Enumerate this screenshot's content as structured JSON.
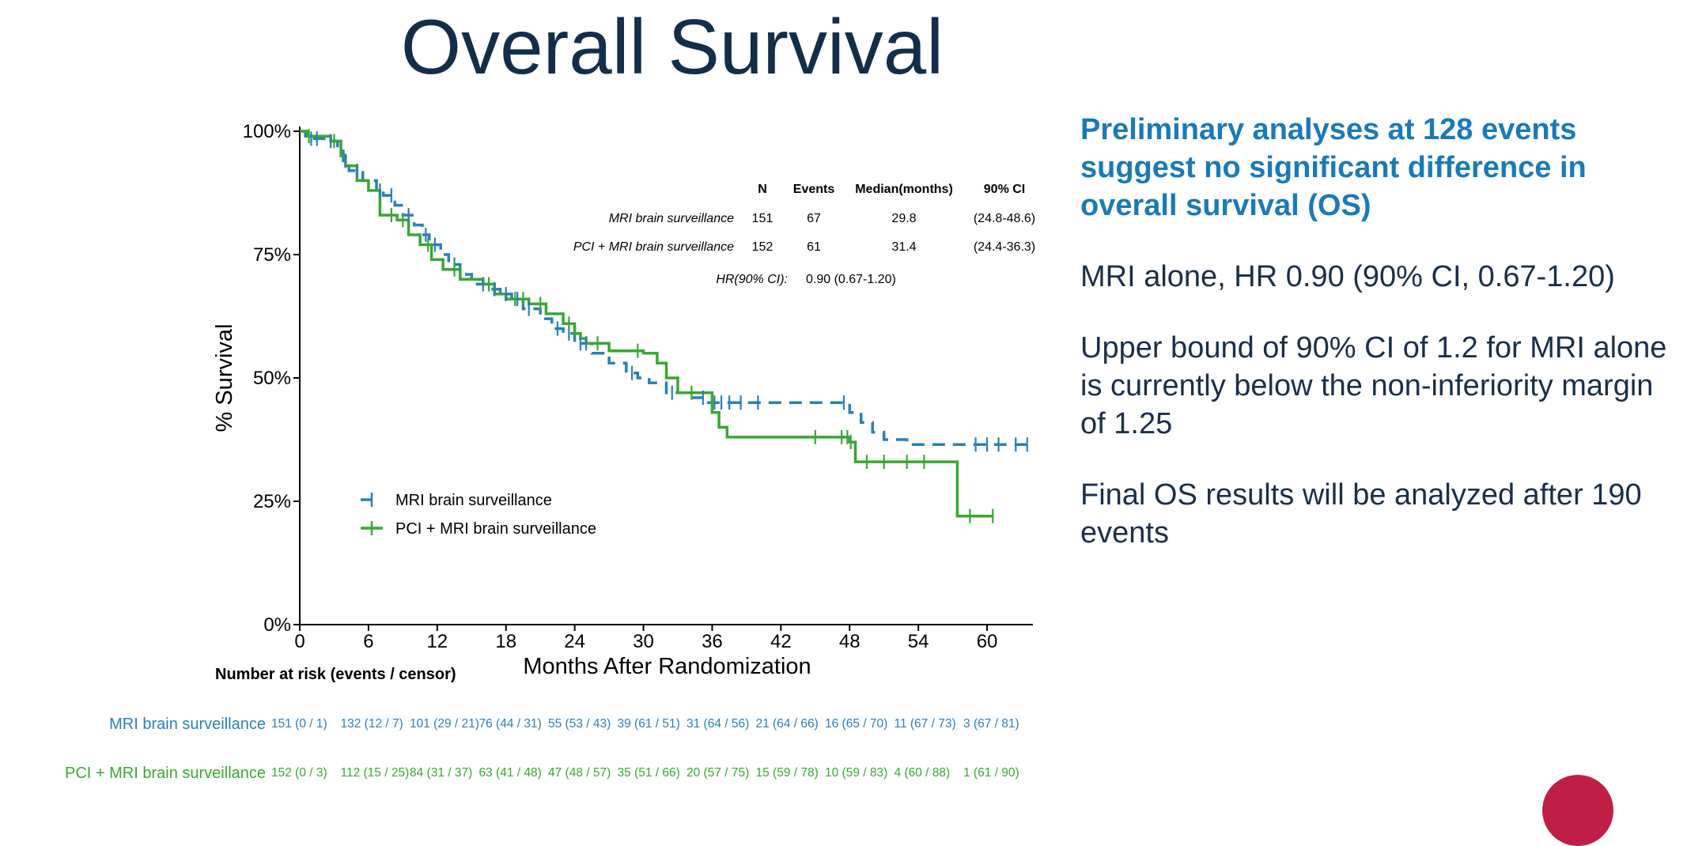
{
  "slide": {
    "title": "Overall Survival"
  },
  "right_panel": {
    "headline": "Preliminary analyses at 128 events suggest no significant difference in overall survival (OS)",
    "hr_text": "MRI alone, HR 0.90 (90% CI, 0.67-1.20)",
    "bound_text": "Upper bound of 90% CI of 1.2 for MRI alone is currently below the non-inferiority margin of 1.25",
    "final_text": "Final OS results will be analyzed after 190 events"
  },
  "colors": {
    "mri": "#2b7fb8",
    "pci": "#3aa635",
    "title": "#132e4b",
    "headline": "#1a7ab8",
    "logo": "#c01f45"
  },
  "chart_data": {
    "type": "line",
    "subtype": "kaplan-meier",
    "xlabel": "Months After Randomization",
    "ylabel": "% Survival",
    "xlim": [
      0,
      64
    ],
    "ylim": [
      0,
      100
    ],
    "xticks": [
      0,
      6,
      12,
      18,
      24,
      30,
      36,
      42,
      48,
      54,
      60
    ],
    "yticks": [
      0,
      25,
      50,
      75,
      100
    ],
    "ytick_labels": [
      "0%",
      "25%",
      "50%",
      "75%",
      "100%"
    ],
    "legend_position": "bottom-left",
    "series": [
      {
        "name": "MRI brain surveillance",
        "style": "dashed",
        "color": "#2b7fb8",
        "steps": [
          [
            0,
            100
          ],
          [
            0.5,
            99
          ],
          [
            1,
            98.5
          ],
          [
            2.5,
            98
          ],
          [
            3.3,
            96
          ],
          [
            3.8,
            94
          ],
          [
            4.3,
            92
          ],
          [
            5.5,
            90
          ],
          [
            6.7,
            88
          ],
          [
            7.3,
            87
          ],
          [
            8.3,
            85
          ],
          [
            9,
            83
          ],
          [
            10,
            81
          ],
          [
            10.7,
            79
          ],
          [
            11.3,
            77
          ],
          [
            12.3,
            75
          ],
          [
            13,
            73
          ],
          [
            14,
            71
          ],
          [
            15,
            69
          ],
          [
            16.5,
            68
          ],
          [
            17.5,
            67
          ],
          [
            18.5,
            66
          ],
          [
            19.5,
            64
          ],
          [
            21,
            62
          ],
          [
            22,
            60
          ],
          [
            23,
            59
          ],
          [
            24,
            57
          ],
          [
            25.5,
            55
          ],
          [
            27,
            53
          ],
          [
            28.5,
            51
          ],
          [
            29.5,
            50
          ],
          [
            30.5,
            49
          ],
          [
            32,
            47
          ],
          [
            34,
            46
          ],
          [
            35.5,
            45
          ],
          [
            48,
            43
          ],
          [
            49,
            41
          ],
          [
            50,
            39
          ],
          [
            51,
            37.5
          ],
          [
            53,
            36.5
          ],
          [
            64,
            36.5
          ]
        ],
        "censor_times": [
          1,
          1.5,
          2.7,
          4,
          5,
          7,
          8,
          9.5,
          11,
          11.8,
          13.5,
          16,
          17,
          18,
          19,
          20,
          22.5,
          23.5,
          24.5,
          25,
          29,
          32.5,
          35.2,
          36.2,
          36.8,
          37.5,
          38.5,
          40,
          47.5,
          59,
          60,
          61,
          62.5,
          63.5
        ]
      },
      {
        "name": "PCI + MRI brain surveillance",
        "style": "solid",
        "color": "#3aa635",
        "steps": [
          [
            0,
            100
          ],
          [
            0.7,
            99
          ],
          [
            2.7,
            98
          ],
          [
            3.6,
            95
          ],
          [
            4,
            93
          ],
          [
            5,
            90
          ],
          [
            6,
            88
          ],
          [
            7,
            83
          ],
          [
            8.5,
            82
          ],
          [
            9.5,
            79
          ],
          [
            10.5,
            77
          ],
          [
            11.5,
            74
          ],
          [
            12.5,
            72
          ],
          [
            14,
            70
          ],
          [
            16,
            69
          ],
          [
            17,
            67
          ],
          [
            18,
            66
          ],
          [
            20,
            65
          ],
          [
            21.5,
            63
          ],
          [
            23,
            61
          ],
          [
            24,
            59
          ],
          [
            24.5,
            58
          ],
          [
            25,
            57
          ],
          [
            27,
            55.5
          ],
          [
            30,
            55
          ],
          [
            31.2,
            53
          ],
          [
            32,
            50
          ],
          [
            33,
            47
          ],
          [
            36,
            43
          ],
          [
            36.6,
            40
          ],
          [
            37.3,
            38
          ],
          [
            48,
            37
          ],
          [
            48.5,
            33
          ],
          [
            57.3,
            33
          ],
          [
            57.4,
            22
          ],
          [
            60.5,
            22
          ]
        ],
        "censor_times": [
          0.8,
          3,
          8,
          9,
          11.2,
          13.5,
          16.5,
          18.8,
          19.5,
          21,
          23.5,
          26,
          29.5,
          34.2,
          45,
          47.3,
          47.8,
          48.1,
          49.5,
          51,
          53,
          54.5,
          58.5,
          60.5
        ]
      }
    ],
    "summary_table": {
      "headers": [
        "",
        "N",
        "Events",
        "Median(months)",
        "90% CI"
      ],
      "rows": [
        [
          "MRI brain surveillance",
          "151",
          "67",
          "29.8",
          "(24.8-48.6)"
        ],
        [
          "PCI + MRI brain surveillance",
          "152",
          "61",
          "31.4",
          "(24.4-36.3)"
        ]
      ],
      "hr_label": "HR(90% CI):",
      "hr_value": "0.90 (0.67-1.20)"
    },
    "risk_table": {
      "title": "Number at risk (events / censor)",
      "times": [
        0,
        6,
        12,
        18,
        24,
        30,
        36,
        42,
        48,
        54,
        60
      ],
      "rows": [
        {
          "label": "MRI brain surveillance",
          "values": [
            "151 (0 / 1)",
            "132 (12 / 7)",
            "101 (29 / 21)",
            "76 (44 / 31)",
            "55 (53 / 43)",
            "39 (61 / 51)",
            "31 (64 / 56)",
            "21 (64 / 66)",
            "16 (65 / 70)",
            "11 (67 / 73)",
            "3 (67 / 81)"
          ]
        },
        {
          "label": "PCI + MRI brain surveillance",
          "values": [
            "152 (0 / 3)",
            "112 (15 / 25)",
            "84 (31 / 37)",
            "63 (41 / 48)",
            "47 (48 / 57)",
            "35 (51 / 66)",
            "20 (57 / 75)",
            "15 (59 / 78)",
            "10 (59 / 83)",
            "4 (60 / 88)",
            "1 (61 / 90)"
          ]
        }
      ]
    }
  }
}
